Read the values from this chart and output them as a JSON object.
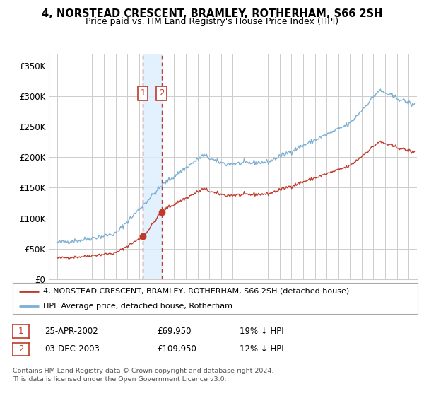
{
  "title": "4, NORSTEAD CRESCENT, BRAMLEY, ROTHERHAM, S66 2SH",
  "subtitle": "Price paid vs. HM Land Registry's House Price Index (HPI)",
  "ylim": [
    0,
    370000
  ],
  "yticks": [
    0,
    50000,
    100000,
    150000,
    200000,
    250000,
    300000,
    350000
  ],
  "ytick_labels": [
    "£0",
    "£50K",
    "£100K",
    "£150K",
    "£200K",
    "£250K",
    "£300K",
    "£350K"
  ],
  "hpi_color": "#7bafd4",
  "price_color": "#c0392b",
  "sale1_price": 69950,
  "sale1_label": "19% ↓ HPI",
  "sale1_year": 2002.32,
  "sale2_price": 109950,
  "sale2_label": "12% ↓ HPI",
  "sale2_year": 2003.92,
  "sale1_date": "25-APR-2002",
  "sale2_date": "03-DEC-2003",
  "legend_line1": "4, NORSTEAD CRESCENT, BRAMLEY, ROTHERHAM, S66 2SH (detached house)",
  "legend_line2": "HPI: Average price, detached house, Rotherham",
  "footnote1": "Contains HM Land Registry data © Crown copyright and database right 2024.",
  "footnote2": "This data is licensed under the Open Government Licence v3.0.",
  "bg_color": "#ffffff",
  "grid_color": "#cccccc",
  "shade_color": "#ddeeff",
  "number_box_color": "#c0392b"
}
